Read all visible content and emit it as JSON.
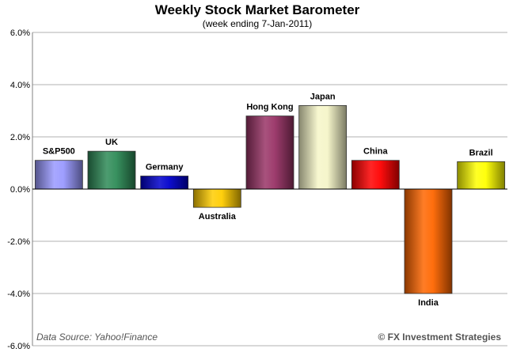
{
  "chart_data": {
    "type": "bar",
    "title": "Weekly Stock Market Barometer",
    "subtitle": "(week ending 7-Jan-2011)",
    "categories": [
      "S&P500",
      "UK",
      "Germany",
      "Australia",
      "Hong Kong",
      "Japan",
      "China",
      "India",
      "Brazil"
    ],
    "values": [
      1.1,
      1.45,
      0.5,
      -0.7,
      2.8,
      3.2,
      1.1,
      -4.0,
      1.05
    ],
    "colors": [
      "#9999ff",
      "#2e8b57",
      "#0000cc",
      "#ffcc00",
      "#993366",
      "#f5f5c8",
      "#ff0000",
      "#ff6600",
      "#ffff00"
    ],
    "ylim": [
      -6.0,
      6.0
    ],
    "yticks": [
      6.0,
      4.0,
      2.0,
      0.0,
      -2.0,
      -4.0,
      -6.0
    ],
    "ytick_labels": [
      "6.0%",
      "4.0%",
      "2.0%",
      "0.0%",
      "-2.0%",
      "-4.0%",
      "-6.0%"
    ],
    "grid": true,
    "xlabel": "",
    "ylabel": ""
  },
  "footer": {
    "source": "Data Source: Yahoo!Finance",
    "credit": "© FX Investment Strategies"
  }
}
